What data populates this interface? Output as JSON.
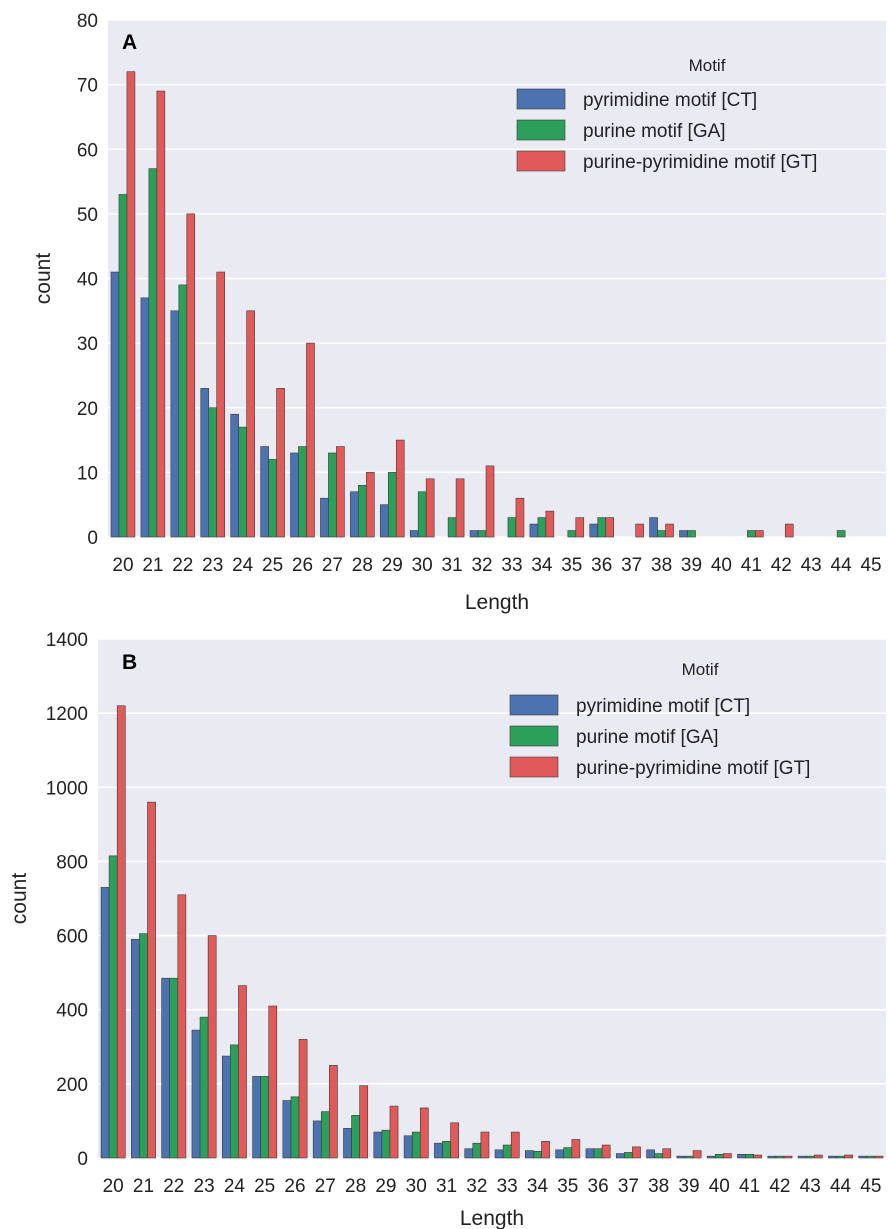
{
  "chart_data": [
    {
      "panel_label": "A",
      "type": "bar",
      "xlabel": "Length",
      "ylabel": "count",
      "ylim": [
        0,
        80
      ],
      "yticks": [
        "0",
        "10",
        "20",
        "30",
        "40",
        "50",
        "60",
        "70",
        "80"
      ],
      "categories": [
        "20",
        "21",
        "22",
        "23",
        "24",
        "25",
        "26",
        "27",
        "28",
        "29",
        "30",
        "31",
        "32",
        "33",
        "34",
        "35",
        "36",
        "37",
        "38",
        "39",
        "40",
        "41",
        "42",
        "43",
        "44",
        "45"
      ],
      "grid": true,
      "legend": {
        "title": "Motif",
        "position": "top-right"
      },
      "series": [
        {
          "name": "pyrimidine motif [CT]",
          "color": "#4c72b0",
          "values": [
            41,
            37,
            35,
            23,
            19,
            14,
            13,
            6,
            7,
            5,
            1,
            0,
            1,
            0,
            2,
            0,
            2,
            0,
            3,
            1,
            0,
            0,
            0,
            0,
            0,
            0
          ]
        },
        {
          "name": "purine motif [GA]",
          "color": "#2ca05a",
          "values": [
            53,
            57,
            39,
            20,
            17,
            12,
            14,
            13,
            8,
            10,
            7,
            3,
            1,
            3,
            3,
            1,
            3,
            0,
            1,
            1,
            0,
            1,
            0,
            0,
            1,
            0
          ]
        },
        {
          "name": " purine-pyrimidine motif [GT]",
          "color": "#e05a5a",
          "values": [
            72,
            69,
            50,
            41,
            35,
            23,
            30,
            14,
            10,
            15,
            9,
            9,
            11,
            6,
            4,
            3,
            3,
            2,
            2,
            0,
            0,
            1,
            2,
            0,
            0,
            0
          ]
        }
      ]
    },
    {
      "panel_label": "B",
      "type": "bar",
      "xlabel": "Length",
      "ylabel": "count",
      "ylim": [
        0,
        1400
      ],
      "yticks": [
        "0",
        "200",
        "400",
        "600",
        "800",
        "1000",
        "1200",
        "1400"
      ],
      "categories": [
        "20",
        "21",
        "22",
        "23",
        "24",
        "25",
        "26",
        "27",
        "28",
        "29",
        "30",
        "31",
        "32",
        "33",
        "34",
        "35",
        "36",
        "37",
        "38",
        "39",
        "40",
        "41",
        "42",
        "43",
        "44",
        "45"
      ],
      "grid": true,
      "legend": {
        "title": "Motif",
        "position": "top-right"
      },
      "series": [
        {
          "name": "pyrimidine motif [CT]",
          "color": "#4c72b0",
          "values": [
            730,
            590,
            485,
            345,
            275,
            220,
            155,
            100,
            80,
            70,
            60,
            40,
            25,
            22,
            20,
            22,
            25,
            12,
            22,
            5,
            5,
            10,
            5,
            5,
            5,
            5
          ]
        },
        {
          "name": "purine motif [GA]",
          "color": "#2ca05a",
          "values": [
            815,
            605,
            485,
            380,
            305,
            220,
            165,
            125,
            115,
            75,
            70,
            45,
            40,
            35,
            18,
            28,
            25,
            15,
            12,
            5,
            10,
            10,
            5,
            5,
            5,
            5
          ]
        },
        {
          "name": " purine-pyrimidine motif [GT]",
          "color": "#e05a5a",
          "values": [
            1220,
            960,
            710,
            600,
            465,
            410,
            320,
            250,
            195,
            140,
            135,
            95,
            70,
            70,
            45,
            50,
            35,
            30,
            25,
            20,
            12,
            8,
            5,
            8,
            8,
            5
          ]
        }
      ]
    }
  ]
}
